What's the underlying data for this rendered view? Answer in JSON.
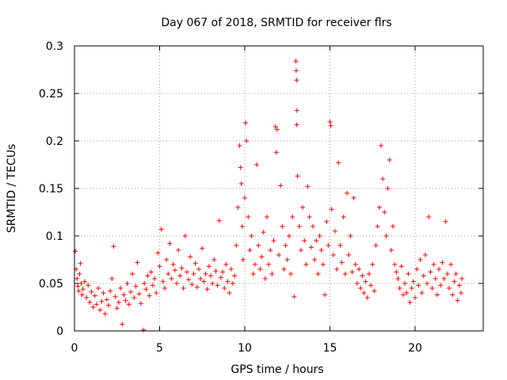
{
  "chart_data": {
    "type": "scatter",
    "title": "Day 067 of 2018, SRMTID for receiver flrs",
    "xlabel": "GPS time / hours",
    "ylabel": "SRMTID / TECUs",
    "xlim": [
      0,
      24
    ],
    "ylim": [
      0,
      0.3
    ],
    "xticks": [
      0,
      5,
      10,
      15,
      20
    ],
    "xtick_labels": [
      "0",
      "5",
      "10",
      "15",
      "20"
    ],
    "yticks": [
      0,
      0.05,
      0.1,
      0.15,
      0.2,
      0.25,
      0.3
    ],
    "ytick_labels": [
      "0",
      "0.05",
      "0.1",
      "0.15",
      "0.2",
      "0.25",
      "0.3"
    ],
    "grid": true,
    "marker": "+",
    "color": "#ff0000",
    "series": [
      {
        "name": "SRMTID",
        "points": [
          [
            0.05,
            0.084
          ],
          [
            0.1,
            0.065
          ],
          [
            0.15,
            0.055
          ],
          [
            0.2,
            0.047
          ],
          [
            0.25,
            0.042
          ],
          [
            0.3,
            0.06
          ],
          [
            0.35,
            0.071
          ],
          [
            0.4,
            0.05
          ],
          [
            0.45,
            0.038
          ],
          [
            0.5,
            0.044
          ],
          [
            0.6,
            0.052
          ],
          [
            0.7,
            0.035
          ],
          [
            0.8,
            0.048
          ],
          [
            0.9,
            0.03
          ],
          [
            1.0,
            0.041
          ],
          [
            1.1,
            0.025
          ],
          [
            1.2,
            0.037
          ],
          [
            1.3,
            0.028
          ],
          [
            1.4,
            0.045
          ],
          [
            1.5,
            0.022
          ],
          [
            1.6,
            0.031
          ],
          [
            1.7,
            0.04
          ],
          [
            1.8,
            0.018
          ],
          [
            1.9,
            0.033
          ],
          [
            2.0,
            0.027
          ],
          [
            2.1,
            0.042
          ],
          [
            2.2,
            0.055
          ],
          [
            2.3,
            0.089
          ],
          [
            2.4,
            0.036
          ],
          [
            2.5,
            0.024
          ],
          [
            2.6,
            0.03
          ],
          [
            2.7,
            0.045
          ],
          [
            2.8,
            0.007
          ],
          [
            2.9,
            0.038
          ],
          [
            3.0,
            0.032
          ],
          [
            3.1,
            0.05
          ],
          [
            3.2,
            0.028
          ],
          [
            3.3,
            0.041
          ],
          [
            3.4,
            0.06
          ],
          [
            3.5,
            0.035
          ],
          [
            3.6,
            0.047
          ],
          [
            3.7,
            0.072
          ],
          [
            3.8,
            0.039
          ],
          [
            3.9,
            0.029
          ],
          [
            4.05,
            0.001
          ],
          [
            4.1,
            0.05
          ],
          [
            4.2,
            0.044
          ],
          [
            4.3,
            0.058
          ],
          [
            4.4,
            0.037
          ],
          [
            4.5,
            0.062
          ],
          [
            4.6,
            0.048
          ],
          [
            4.7,
            0.055
          ],
          [
            4.8,
            0.04
          ],
          [
            4.9,
            0.082
          ],
          [
            5.0,
            0.068
          ],
          [
            5.1,
            0.107
          ],
          [
            5.2,
            0.052
          ],
          [
            5.3,
            0.045
          ],
          [
            5.4,
            0.075
          ],
          [
            5.5,
            0.06
          ],
          [
            5.6,
            0.092
          ],
          [
            5.7,
            0.055
          ],
          [
            5.8,
            0.07
          ],
          [
            5.9,
            0.064
          ],
          [
            6.0,
            0.05
          ],
          [
            6.1,
            0.085
          ],
          [
            6.2,
            0.058
          ],
          [
            6.3,
            0.066
          ],
          [
            6.4,
            0.045
          ],
          [
            6.5,
            0.1
          ],
          [
            6.6,
            0.062
          ],
          [
            6.7,
            0.054
          ],
          [
            6.8,
            0.078
          ],
          [
            6.9,
            0.049
          ],
          [
            7.0,
            0.06
          ],
          [
            7.1,
            0.071
          ],
          [
            7.2,
            0.046
          ],
          [
            7.3,
            0.065
          ],
          [
            7.4,
            0.055
          ],
          [
            7.5,
            0.087
          ],
          [
            7.6,
            0.052
          ],
          [
            7.7,
            0.06
          ],
          [
            7.8,
            0.044
          ],
          [
            7.9,
            0.068
          ],
          [
            8.0,
            0.058
          ],
          [
            8.1,
            0.05
          ],
          [
            8.2,
            0.075
          ],
          [
            8.3,
            0.063
          ],
          [
            8.4,
            0.048
          ],
          [
            8.5,
            0.116
          ],
          [
            8.6,
            0.056
          ],
          [
            8.7,
            0.062
          ],
          [
            8.8,
            0.045
          ],
          [
            8.9,
            0.07
          ],
          [
            9.0,
            0.052
          ],
          [
            9.1,
            0.04
          ],
          [
            9.2,
            0.065
          ],
          [
            9.3,
            0.05
          ],
          [
            9.4,
            0.058
          ],
          [
            9.5,
            0.09
          ],
          [
            9.6,
            0.13
          ],
          [
            9.7,
            0.195
          ],
          [
            9.75,
            0.172
          ],
          [
            9.8,
            0.155
          ],
          [
            9.85,
            0.11
          ],
          [
            9.9,
            0.075
          ],
          [
            10.0,
            0.14
          ],
          [
            10.05,
            0.219
          ],
          [
            10.1,
            0.2
          ],
          [
            10.2,
            0.12
          ],
          [
            10.3,
            0.085
          ],
          [
            10.4,
            0.1
          ],
          [
            10.5,
            0.06
          ],
          [
            10.6,
            0.07
          ],
          [
            10.7,
            0.175
          ],
          [
            10.8,
            0.09
          ],
          [
            10.9,
            0.065
          ],
          [
            11.0,
            0.078
          ],
          [
            11.1,
            0.104
          ],
          [
            11.2,
            0.055
          ],
          [
            11.3,
            0.12
          ],
          [
            11.4,
            0.07
          ],
          [
            11.5,
            0.085
          ],
          [
            11.6,
            0.06
          ],
          [
            11.7,
            0.095
          ],
          [
            11.8,
            0.215
          ],
          [
            11.85,
            0.188
          ],
          [
            11.9,
            0.212
          ],
          [
            12.0,
            0.08
          ],
          [
            12.1,
            0.153
          ],
          [
            12.2,
            0.11
          ],
          [
            12.3,
            0.065
          ],
          [
            12.4,
            0.09
          ],
          [
            12.5,
            0.075
          ],
          [
            12.6,
            0.1
          ],
          [
            12.7,
            0.06
          ],
          [
            12.8,
            0.12
          ],
          [
            12.9,
            0.036
          ],
          [
            13.0,
            0.284
          ],
          [
            13.02,
            0.274
          ],
          [
            13.04,
            0.264
          ],
          [
            13.06,
            0.232
          ],
          [
            13.05,
            0.217
          ],
          [
            13.1,
            0.163
          ],
          [
            13.2,
            0.11
          ],
          [
            13.3,
            0.085
          ],
          [
            13.4,
            0.13
          ],
          [
            13.5,
            0.095
          ],
          [
            13.6,
            0.07
          ],
          [
            13.7,
            0.152
          ],
          [
            13.8,
            0.12
          ],
          [
            13.9,
            0.088
          ],
          [
            14.0,
            0.11
          ],
          [
            14.1,
            0.075
          ],
          [
            14.2,
            0.095
          ],
          [
            14.3,
            0.06
          ],
          [
            14.4,
            0.1
          ],
          [
            14.5,
            0.085
          ],
          [
            14.6,
            0.07
          ],
          [
            14.7,
            0.038
          ],
          [
            14.8,
            0.115
          ],
          [
            14.9,
            0.09
          ],
          [
            15.0,
            0.22
          ],
          [
            15.05,
            0.216
          ],
          [
            15.1,
            0.128
          ],
          [
            15.2,
            0.08
          ],
          [
            15.3,
            0.105
          ],
          [
            15.4,
            0.065
          ],
          [
            15.5,
            0.177
          ],
          [
            15.6,
            0.09
          ],
          [
            15.7,
            0.072
          ],
          [
            15.8,
            0.12
          ],
          [
            15.9,
            0.06
          ],
          [
            16.0,
            0.145
          ],
          [
            16.1,
            0.08
          ],
          [
            16.2,
            0.1
          ],
          [
            16.3,
            0.062
          ],
          [
            16.4,
            0.14
          ],
          [
            16.5,
            0.07
          ],
          [
            16.6,
            0.05
          ],
          [
            16.7,
            0.065
          ],
          [
            16.8,
            0.045
          ],
          [
            16.9,
            0.058
          ],
          [
            17.0,
            0.04
          ],
          [
            17.1,
            0.052
          ],
          [
            17.2,
            0.035
          ],
          [
            17.3,
            0.06
          ],
          [
            17.4,
            0.048
          ],
          [
            17.5,
            0.07
          ],
          [
            17.6,
            0.042
          ],
          [
            17.7,
            0.09
          ],
          [
            17.8,
            0.11
          ],
          [
            17.9,
            0.13
          ],
          [
            18.0,
            0.195
          ],
          [
            18.1,
            0.16
          ],
          [
            18.2,
            0.125
          ],
          [
            18.3,
            0.1
          ],
          [
            18.4,
            0.15
          ],
          [
            18.5,
            0.18
          ],
          [
            18.6,
            0.085
          ],
          [
            18.7,
            0.11
          ],
          [
            18.8,
            0.07
          ],
          [
            18.9,
            0.062
          ],
          [
            19.0,
            0.055
          ],
          [
            19.1,
            0.045
          ],
          [
            19.2,
            0.068
          ],
          [
            19.3,
            0.038
          ],
          [
            19.4,
            0.05
          ],
          [
            19.5,
            0.04
          ],
          [
            19.6,
            0.06
          ],
          [
            19.7,
            0.03
          ],
          [
            19.8,
            0.045
          ],
          [
            19.9,
            0.052
          ],
          [
            20.0,
            0.035
          ],
          [
            20.1,
            0.065
          ],
          [
            20.2,
            0.048
          ],
          [
            20.3,
            0.075
          ],
          [
            20.4,
            0.04
          ],
          [
            20.5,
            0.058
          ],
          [
            20.6,
            0.08
          ],
          [
            20.7,
            0.05
          ],
          [
            20.8,
            0.12
          ],
          [
            20.9,
            0.062
          ],
          [
            21.0,
            0.045
          ],
          [
            21.1,
            0.07
          ],
          [
            21.2,
            0.055
          ],
          [
            21.3,
            0.038
          ],
          [
            21.4,
            0.065
          ],
          [
            21.5,
            0.048
          ],
          [
            21.6,
            0.072
          ],
          [
            21.7,
            0.055
          ],
          [
            21.8,
            0.115
          ],
          [
            21.9,
            0.06
          ],
          [
            22.0,
            0.045
          ],
          [
            22.1,
            0.07
          ],
          [
            22.2,
            0.038
          ],
          [
            22.3,
            0.052
          ],
          [
            22.4,
            0.06
          ],
          [
            22.5,
            0.032
          ],
          [
            22.6,
            0.048
          ],
          [
            22.7,
            0.04
          ],
          [
            22.75,
            0.055
          ]
        ]
      }
    ]
  }
}
